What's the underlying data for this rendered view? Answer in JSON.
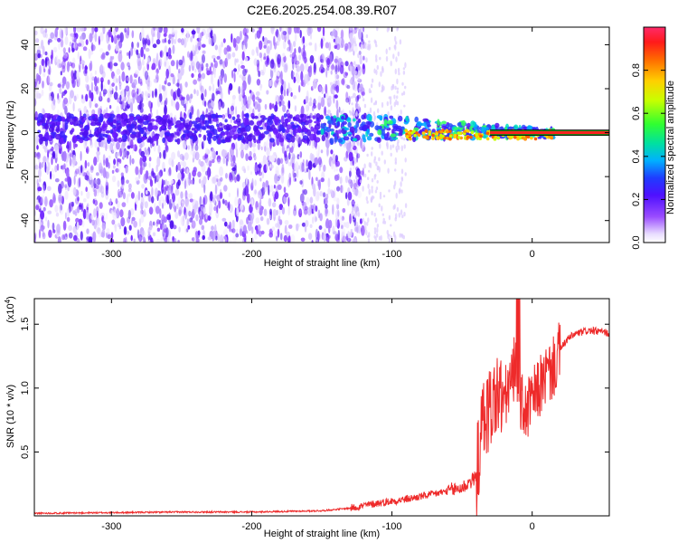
{
  "title": "C2E6.2025.254.08.39.R07",
  "chart_data": [
    {
      "type": "heatmap",
      "xlabel": "Height of straight line (km)",
      "ylabel": "Frequency (Hz)",
      "xlim": [
        -355,
        55
      ],
      "ylim": [
        -50,
        48
      ],
      "xticks": [
        -300,
        -200,
        -100,
        0
      ],
      "yticks": [
        -40,
        -20,
        0,
        20,
        40
      ],
      "colorbar": {
        "label": "Normalized spectral amplitude",
        "range": [
          0,
          1
        ],
        "ticks": [
          0.0,
          0.2,
          0.4,
          0.6,
          0.8
        ]
      },
      "features": {
        "dense_noise_region_km": [
          -355,
          -130
        ],
        "central_band_hz": [
          -5,
          5
        ],
        "carrier_line_start_km": -30,
        "carrier_line_freq_hz": 0
      }
    },
    {
      "type": "line",
      "xlabel": "Height of straight line (km)",
      "ylabel": "SNR (10 * v/v)",
      "scale_label": "(x10",
      "scale_exponent": "4",
      "scale_close": ")",
      "xlim": [
        -355,
        55
      ],
      "ylim": [
        0,
        1.7
      ],
      "xticks": [
        -300,
        -200,
        -100,
        0
      ],
      "yticks": [
        0.5,
        1.0,
        1.5
      ],
      "series": [
        {
          "color": "#ee2a2a",
          "points": [
            [
              -355,
              0.02
            ],
            [
              -300,
              0.025
            ],
            [
              -250,
              0.03
            ],
            [
              -200,
              0.03
            ],
            [
              -150,
              0.04
            ],
            [
              -130,
              0.06
            ],
            [
              -110,
              0.1
            ],
            [
              -90,
              0.13
            ],
            [
              -70,
              0.17
            ],
            [
              -50,
              0.22
            ],
            [
              -40,
              0.3
            ],
            [
              -35,
              0.75
            ],
            [
              -30,
              0.85
            ],
            [
              -25,
              0.95
            ],
            [
              -20,
              0.9
            ],
            [
              -15,
              1.05
            ],
            [
              -12,
              1.2
            ],
            [
              -10,
              0.95
            ],
            [
              -5,
              0.8
            ],
            [
              0,
              0.9
            ],
            [
              5,
              1.0
            ],
            [
              10,
              1.1
            ],
            [
              15,
              1.15
            ],
            [
              20,
              1.3
            ],
            [
              25,
              1.38
            ],
            [
              30,
              1.42
            ],
            [
              40,
              1.45
            ],
            [
              50,
              1.44
            ],
            [
              55,
              1.43
            ]
          ]
        }
      ]
    }
  ]
}
